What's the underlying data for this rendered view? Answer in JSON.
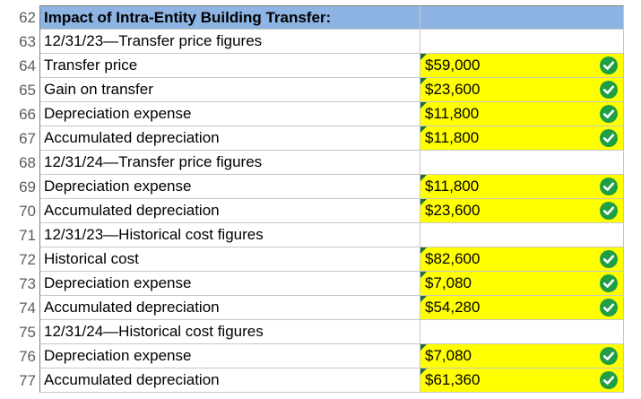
{
  "rows": [
    {
      "num": "62",
      "label": "Impact of Intra-Entity Building Transfer:",
      "value": "",
      "header": true,
      "check": false
    },
    {
      "num": "63",
      "label": "12/31/23—Transfer price figures",
      "value": "",
      "header": false,
      "check": false
    },
    {
      "num": "64",
      "label": "Transfer price",
      "value": "$59,000",
      "header": false,
      "check": true
    },
    {
      "num": "65",
      "label": "Gain on transfer",
      "value": "$23,600",
      "header": false,
      "check": true
    },
    {
      "num": "66",
      "label": "Depreciation expense",
      "value": "$11,800",
      "header": false,
      "check": true
    },
    {
      "num": "67",
      "label": "Accumulated depreciation",
      "value": "$11,800",
      "header": false,
      "check": true
    },
    {
      "num": "68",
      "label": "12/31/24—Transfer price figures",
      "value": "",
      "header": false,
      "check": false
    },
    {
      "num": "69",
      "label": "Depreciation expense",
      "value": "$11,800",
      "header": false,
      "check": true
    },
    {
      "num": "70",
      "label": "Accumulated depreciation",
      "value": "$23,600",
      "header": false,
      "check": true
    },
    {
      "num": "71",
      "label": "12/31/23—Historical cost figures",
      "value": "",
      "header": false,
      "check": false
    },
    {
      "num": "72",
      "label": "Historical cost",
      "value": "$82,600",
      "header": false,
      "check": true
    },
    {
      "num": "73",
      "label": "Depreciation expense",
      "value": "$7,080",
      "header": false,
      "check": true
    },
    {
      "num": "74",
      "label": "Accumulated depreciation",
      "value": "$54,280",
      "header": false,
      "check": true
    },
    {
      "num": "75",
      "label": "12/31/24—Historical cost figures",
      "value": "",
      "header": false,
      "check": false
    },
    {
      "num": "76",
      "label": "Depreciation expense",
      "value": "$7,080",
      "header": false,
      "check": true
    },
    {
      "num": "77",
      "label": "Accumulated depreciation",
      "value": "$61,360",
      "header": false,
      "check": true
    }
  ],
  "colors": {
    "header_fill": "#8db4e2",
    "answer_fill": "#ffff00",
    "check_green": "#1f9e45",
    "corner_marker": "#1e6e3e"
  },
  "icons": {
    "check": "check-circle-icon",
    "corner": "cell-comment-corner-icon"
  }
}
